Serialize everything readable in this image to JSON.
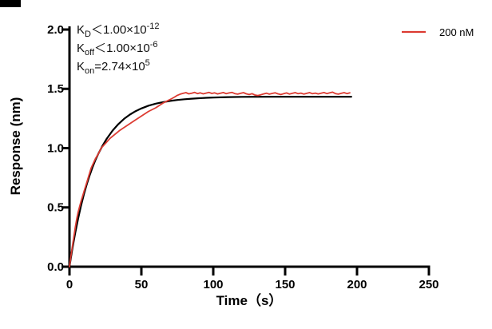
{
  "annotation": {
    "lines": [
      {
        "k": "K",
        "sub": "D",
        "rel": "＜",
        "value": "1.00×10",
        "exp": "-12"
      },
      {
        "k": "K",
        "sub": "off",
        "rel": "＜",
        "value": "1.00×10",
        "exp": "-6"
      },
      {
        "k": "K",
        "sub": "on",
        "rel": "=",
        "value": "2.74×10",
        "exp": "5"
      }
    ]
  },
  "legend": {
    "items": [
      {
        "label": "200 nM",
        "color": "#dc3b32"
      }
    ]
  },
  "colors": {
    "measured_trace": "#dc3b32",
    "fit_trace": "#000000",
    "axis": "#000000"
  },
  "chart_data": {
    "type": "line",
    "title": "",
    "xlabel": "Time（s）",
    "ylabel": "Response (nm)",
    "xlim": [
      0,
      250
    ],
    "ylim": [
      0,
      2.0
    ],
    "xticks": [
      "0",
      "50",
      "100",
      "150",
      "200",
      "250"
    ],
    "yticks": [
      "0.0",
      "0.5",
      "1.0",
      "1.5",
      "2.0"
    ],
    "grid": false,
    "legend_position": "top-right",
    "series": [
      {
        "name": "200 nM",
        "role": "measured sensorgram (noisy)",
        "color": "#dc3b32",
        "points": [
          [
            0,
            0
          ],
          [
            1,
            0.09
          ],
          [
            2,
            0.17
          ],
          [
            3,
            0.25
          ],
          [
            4,
            0.33
          ],
          [
            5,
            0.4
          ],
          [
            6,
            0.46
          ],
          [
            8,
            0.55
          ],
          [
            10,
            0.63
          ],
          [
            12,
            0.71
          ],
          [
            15,
            0.83
          ],
          [
            18,
            0.91
          ],
          [
            20,
            0.95
          ],
          [
            22,
            1.0
          ],
          [
            25,
            1.04
          ],
          [
            28,
            1.08
          ],
          [
            30,
            1.1
          ],
          [
            33,
            1.13
          ],
          [
            35,
            1.15
          ],
          [
            40,
            1.19
          ],
          [
            45,
            1.23
          ],
          [
            50,
            1.27
          ],
          [
            55,
            1.31
          ],
          [
            60,
            1.34
          ],
          [
            65,
            1.38
          ],
          [
            70,
            1.41
          ],
          [
            73,
            1.43
          ],
          [
            75,
            1.445
          ],
          [
            77,
            1.455
          ],
          [
            79,
            1.462
          ],
          [
            81,
            1.468
          ],
          [
            83,
            1.458
          ],
          [
            85,
            1.463
          ],
          [
            87,
            1.47
          ],
          [
            89,
            1.46
          ],
          [
            91,
            1.466
          ],
          [
            93,
            1.458
          ],
          [
            95,
            1.464
          ],
          [
            97,
            1.47
          ],
          [
            99,
            1.461
          ],
          [
            101,
            1.466
          ],
          [
            103,
            1.457
          ],
          [
            105,
            1.463
          ],
          [
            107,
            1.469
          ],
          [
            109,
            1.459
          ],
          [
            111,
            1.465
          ],
          [
            113,
            1.47
          ],
          [
            115,
            1.46
          ],
          [
            117,
            1.455
          ],
          [
            119,
            1.462
          ],
          [
            121,
            1.468
          ],
          [
            123,
            1.458
          ],
          [
            125,
            1.452
          ],
          [
            127,
            1.459
          ],
          [
            129,
            1.448
          ],
          [
            131,
            1.444
          ],
          [
            133,
            1.45
          ],
          [
            135,
            1.457
          ],
          [
            137,
            1.463
          ],
          [
            139,
            1.455
          ],
          [
            141,
            1.461
          ],
          [
            143,
            1.467
          ],
          [
            145,
            1.458
          ],
          [
            147,
            1.452
          ],
          [
            149,
            1.459
          ],
          [
            151,
            1.465
          ],
          [
            153,
            1.456
          ],
          [
            155,
            1.462
          ],
          [
            157,
            1.468
          ],
          [
            159,
            1.459
          ],
          [
            161,
            1.464
          ],
          [
            163,
            1.456
          ],
          [
            165,
            1.462
          ],
          [
            167,
            1.468
          ],
          [
            169,
            1.459
          ],
          [
            171,
            1.464
          ],
          [
            173,
            1.457
          ],
          [
            175,
            1.463
          ],
          [
            177,
            1.469
          ],
          [
            179,
            1.46
          ],
          [
            181,
            1.466
          ],
          [
            183,
            1.472
          ],
          [
            185,
            1.46
          ],
          [
            187,
            1.455
          ],
          [
            189,
            1.462
          ],
          [
            191,
            1.468
          ],
          [
            193,
            1.46
          ],
          [
            195,
            1.466
          ]
        ]
      },
      {
        "name": "fit",
        "role": "kinetic fit curve",
        "color": "#000000",
        "points": [
          [
            0,
            0
          ],
          [
            2,
            0.151
          ],
          [
            4,
            0.285
          ],
          [
            6,
            0.405
          ],
          [
            8,
            0.513
          ],
          [
            10,
            0.609
          ],
          [
            12,
            0.694
          ],
          [
            14,
            0.77
          ],
          [
            16,
            0.838
          ],
          [
            18,
            0.898
          ],
          [
            20,
            0.951
          ],
          [
            23,
            1.021
          ],
          [
            26,
            1.081
          ],
          [
            30,
            1.148
          ],
          [
            34,
            1.203
          ],
          [
            38,
            1.247
          ],
          [
            42,
            1.283
          ],
          [
            46,
            1.312
          ],
          [
            50,
            1.335
          ],
          [
            55,
            1.358
          ],
          [
            60,
            1.375
          ],
          [
            65,
            1.388
          ],
          [
            70,
            1.398
          ],
          [
            75,
            1.406
          ],
          [
            80,
            1.412
          ],
          [
            85,
            1.417
          ],
          [
            90,
            1.421
          ],
          [
            95,
            1.424
          ],
          [
            100,
            1.427
          ],
          [
            110,
            1.43
          ],
          [
            120,
            1.432
          ],
          [
            140,
            1.434
          ],
          [
            160,
            1.434
          ],
          [
            180,
            1.434
          ],
          [
            196,
            1.434
          ]
        ]
      }
    ]
  }
}
